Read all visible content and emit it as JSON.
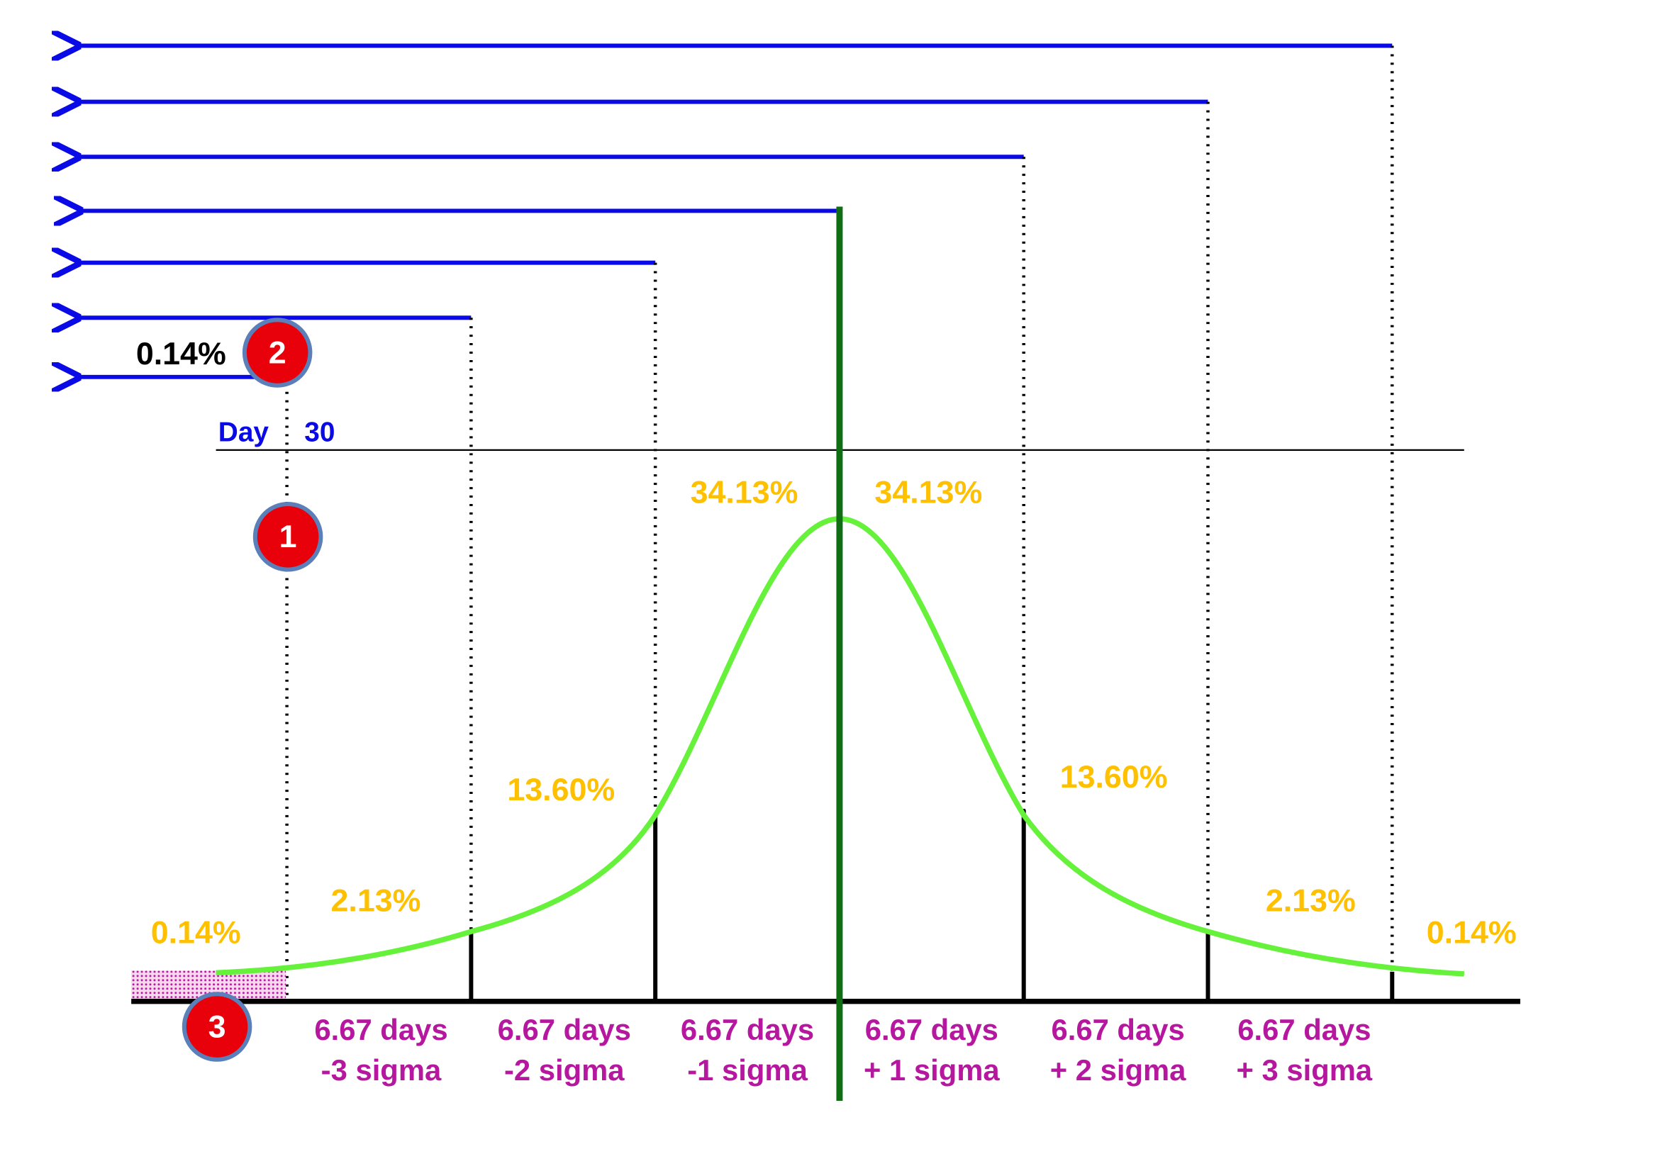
{
  "percent_labels": [
    "0.14%",
    "2.13%",
    "13.60%",
    "34.13%",
    "34.13%",
    "13.60%",
    "2.13%",
    "0.14%"
  ],
  "interval_labels": [
    {
      "days": "6.67 days",
      "sigma": "-3 sigma"
    },
    {
      "days": "6.67 days",
      "sigma": "-2 sigma"
    },
    {
      "days": "6.67 days",
      "sigma": "-1 sigma"
    },
    {
      "days": "6.67 days",
      "sigma": "+ 1 sigma"
    },
    {
      "days": "6.67 days",
      "sigma": "+ 2 sigma"
    },
    {
      "days": "6.67 days",
      "sigma": "+ 3 sigma"
    }
  ],
  "day_label": {
    "word": "Day",
    "number": "30"
  },
  "callout_value": "0.14%",
  "badges": [
    "1",
    "2",
    "3"
  ]
}
